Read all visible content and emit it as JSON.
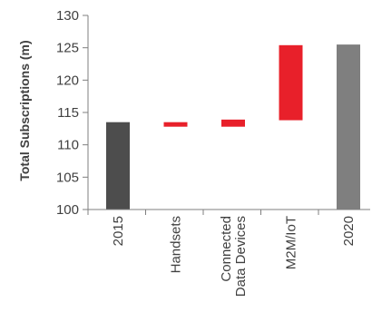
{
  "chart_data": {
    "type": "bar",
    "subtype": "waterfall",
    "ylabel": "Total Subscriptions (m)",
    "ylim": [
      100,
      130
    ],
    "yticks": [
      100,
      105,
      110,
      115,
      120,
      125,
      130
    ],
    "grid": false,
    "legend": "none",
    "categories": [
      {
        "label": "2015",
        "lines": [
          "2015"
        ]
      },
      {
        "label": "Handsets",
        "lines": [
          "Handsets"
        ]
      },
      {
        "label": "Connected Data Devices",
        "lines": [
          "Connected",
          "Data Devices"
        ]
      },
      {
        "label": "M2M/IoT",
        "lines": [
          "M2M/IoT"
        ]
      },
      {
        "label": "2020",
        "lines": [
          "2020"
        ]
      }
    ],
    "bars": [
      {
        "category": "2015",
        "low": 100,
        "high": 113.5,
        "kind": "total"
      },
      {
        "category": "Handsets",
        "low": 112.8,
        "high": 113.5,
        "kind": "change"
      },
      {
        "category": "Connected Data Devices",
        "low": 112.8,
        "high": 113.9,
        "kind": "change"
      },
      {
        "category": "M2M/IoT",
        "low": 113.8,
        "high": 125.4,
        "kind": "change"
      },
      {
        "category": "2020",
        "low": 100,
        "high": 125.5,
        "kind": "total"
      }
    ],
    "colors": {
      "start_total": "#4d4d4d",
      "change": "#e8202a",
      "end_total": "#7f7f7f",
      "axis": "#7f7f7f",
      "text": "#404040"
    }
  }
}
